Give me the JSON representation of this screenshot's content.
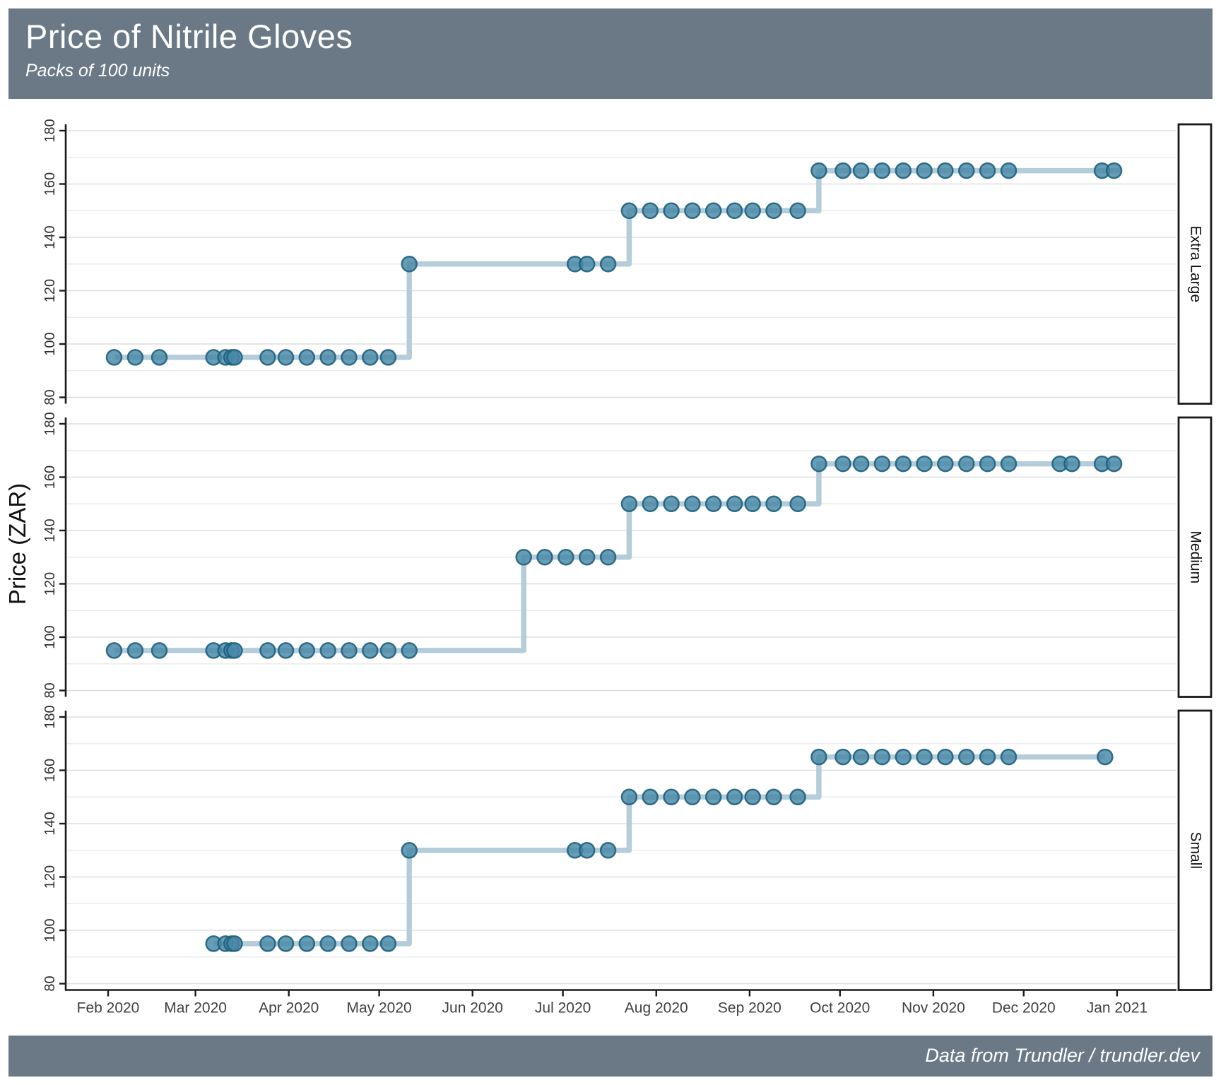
{
  "header": {
    "title": "Price of Nitrile Gloves",
    "subtitle": "Packs of 100 units",
    "background_color": "#6b7987",
    "text_color": "#ffffff"
  },
  "footer": {
    "credit": "Data from Trundler / trundler.dev"
  },
  "y_axis": {
    "title": "Price (ZAR)"
  },
  "colors": {
    "point_fill": "#4788a6",
    "point_stroke": "#1f617f",
    "step_line": "#b4cdd9",
    "gridline": "#dedede",
    "axis": "#1a1a1a"
  },
  "chart_data": {
    "type": "line",
    "style": "step-line-with-scatter-points",
    "title": "Price of Nitrile Gloves",
    "subtitle": "Packs of 100 units",
    "ylabel": "Price (ZAR)",
    "xlabel": "",
    "y_ticks": [
      80,
      100,
      120,
      140,
      160,
      180
    ],
    "ylim": [
      80,
      180
    ],
    "x_tick_labels": [
      "Feb 2020",
      "Mar 2020",
      "Apr 2020",
      "May 2020",
      "Jun 2020",
      "Jul 2020",
      "Aug 2020",
      "Sep 2020",
      "Oct 2020",
      "Nov 2020",
      "Dec 2020",
      "Jan 2021"
    ],
    "x_tick_dates": [
      "2020-02-01",
      "2020-03-01",
      "2020-04-01",
      "2020-05-01",
      "2020-06-01",
      "2020-07-01",
      "2020-08-01",
      "2020-09-01",
      "2020-10-01",
      "2020-11-01",
      "2020-12-01",
      "2021-01-01"
    ],
    "legend": "none",
    "grid": "on",
    "facet_labels": [
      "Extra Large",
      "Medium",
      "Small"
    ],
    "facets": [
      {
        "label": "Extra Large",
        "line_end": "2021-01-02",
        "points": [
          [
            "2020-02-03",
            95
          ],
          [
            "2020-02-10",
            95
          ],
          [
            "2020-02-18",
            95
          ],
          [
            "2020-03-07",
            95
          ],
          [
            "2020-03-11",
            95
          ],
          [
            "2020-03-13",
            95
          ],
          [
            "2020-03-14",
            95
          ],
          [
            "2020-03-25",
            95
          ],
          [
            "2020-03-31",
            95
          ],
          [
            "2020-04-07",
            95
          ],
          [
            "2020-04-14",
            95
          ],
          [
            "2020-04-21",
            95
          ],
          [
            "2020-04-28",
            95
          ],
          [
            "2020-05-04",
            95
          ],
          [
            "2020-05-11",
            130
          ],
          [
            "2020-07-05",
            130
          ],
          [
            "2020-07-09",
            130
          ],
          [
            "2020-07-16",
            130
          ],
          [
            "2020-07-23",
            150
          ],
          [
            "2020-07-30",
            150
          ],
          [
            "2020-08-06",
            150
          ],
          [
            "2020-08-13",
            150
          ],
          [
            "2020-08-20",
            150
          ],
          [
            "2020-08-27",
            150
          ],
          [
            "2020-09-02",
            150
          ],
          [
            "2020-09-09",
            150
          ],
          [
            "2020-09-17",
            150
          ],
          [
            "2020-09-24",
            165
          ],
          [
            "2020-10-02",
            165
          ],
          [
            "2020-10-08",
            165
          ],
          [
            "2020-10-15",
            165
          ],
          [
            "2020-10-22",
            165
          ],
          [
            "2020-10-29",
            165
          ],
          [
            "2020-11-05",
            165
          ],
          [
            "2020-11-12",
            165
          ],
          [
            "2020-11-19",
            165
          ],
          [
            "2020-11-26",
            165
          ],
          [
            "2020-12-27",
            165
          ],
          [
            "2020-12-31",
            165
          ]
        ]
      },
      {
        "label": "Medium",
        "line_end": "2021-01-02",
        "points": [
          [
            "2020-02-03",
            95
          ],
          [
            "2020-02-10",
            95
          ],
          [
            "2020-02-18",
            95
          ],
          [
            "2020-03-07",
            95
          ],
          [
            "2020-03-11",
            95
          ],
          [
            "2020-03-13",
            95
          ],
          [
            "2020-03-14",
            95
          ],
          [
            "2020-03-25",
            95
          ],
          [
            "2020-03-31",
            95
          ],
          [
            "2020-04-07",
            95
          ],
          [
            "2020-04-14",
            95
          ],
          [
            "2020-04-21",
            95
          ],
          [
            "2020-04-28",
            95
          ],
          [
            "2020-05-04",
            95
          ],
          [
            "2020-05-11",
            95
          ],
          [
            "2020-06-18",
            130
          ],
          [
            "2020-06-25",
            130
          ],
          [
            "2020-07-02",
            130
          ],
          [
            "2020-07-09",
            130
          ],
          [
            "2020-07-16",
            130
          ],
          [
            "2020-07-23",
            150
          ],
          [
            "2020-07-30",
            150
          ],
          [
            "2020-08-06",
            150
          ],
          [
            "2020-08-13",
            150
          ],
          [
            "2020-08-20",
            150
          ],
          [
            "2020-08-27",
            150
          ],
          [
            "2020-09-02",
            150
          ],
          [
            "2020-09-09",
            150
          ],
          [
            "2020-09-17",
            150
          ],
          [
            "2020-09-24",
            165
          ],
          [
            "2020-10-02",
            165
          ],
          [
            "2020-10-08",
            165
          ],
          [
            "2020-10-15",
            165
          ],
          [
            "2020-10-22",
            165
          ],
          [
            "2020-10-29",
            165
          ],
          [
            "2020-11-05",
            165
          ],
          [
            "2020-11-12",
            165
          ],
          [
            "2020-11-19",
            165
          ],
          [
            "2020-11-26",
            165
          ],
          [
            "2020-12-13",
            165
          ],
          [
            "2020-12-17",
            165
          ],
          [
            "2020-12-27",
            165
          ],
          [
            "2020-12-31",
            165
          ]
        ]
      },
      {
        "label": "Small",
        "line_end": "2020-12-28",
        "points": [
          [
            "2020-03-07",
            95
          ],
          [
            "2020-03-11",
            95
          ],
          [
            "2020-03-13",
            95
          ],
          [
            "2020-03-14",
            95
          ],
          [
            "2020-03-25",
            95
          ],
          [
            "2020-03-31",
            95
          ],
          [
            "2020-04-07",
            95
          ],
          [
            "2020-04-14",
            95
          ],
          [
            "2020-04-21",
            95
          ],
          [
            "2020-04-28",
            95
          ],
          [
            "2020-05-04",
            95
          ],
          [
            "2020-05-11",
            130
          ],
          [
            "2020-07-05",
            130
          ],
          [
            "2020-07-09",
            130
          ],
          [
            "2020-07-16",
            130
          ],
          [
            "2020-07-23",
            150
          ],
          [
            "2020-07-30",
            150
          ],
          [
            "2020-08-06",
            150
          ],
          [
            "2020-08-13",
            150
          ],
          [
            "2020-08-20",
            150
          ],
          [
            "2020-08-27",
            150
          ],
          [
            "2020-09-02",
            150
          ],
          [
            "2020-09-09",
            150
          ],
          [
            "2020-09-17",
            150
          ],
          [
            "2020-09-24",
            165
          ],
          [
            "2020-10-02",
            165
          ],
          [
            "2020-10-08",
            165
          ],
          [
            "2020-10-15",
            165
          ],
          [
            "2020-10-22",
            165
          ],
          [
            "2020-10-29",
            165
          ],
          [
            "2020-11-05",
            165
          ],
          [
            "2020-11-12",
            165
          ],
          [
            "2020-11-19",
            165
          ],
          [
            "2020-11-26",
            165
          ],
          [
            "2020-12-28",
            165
          ]
        ]
      }
    ]
  }
}
